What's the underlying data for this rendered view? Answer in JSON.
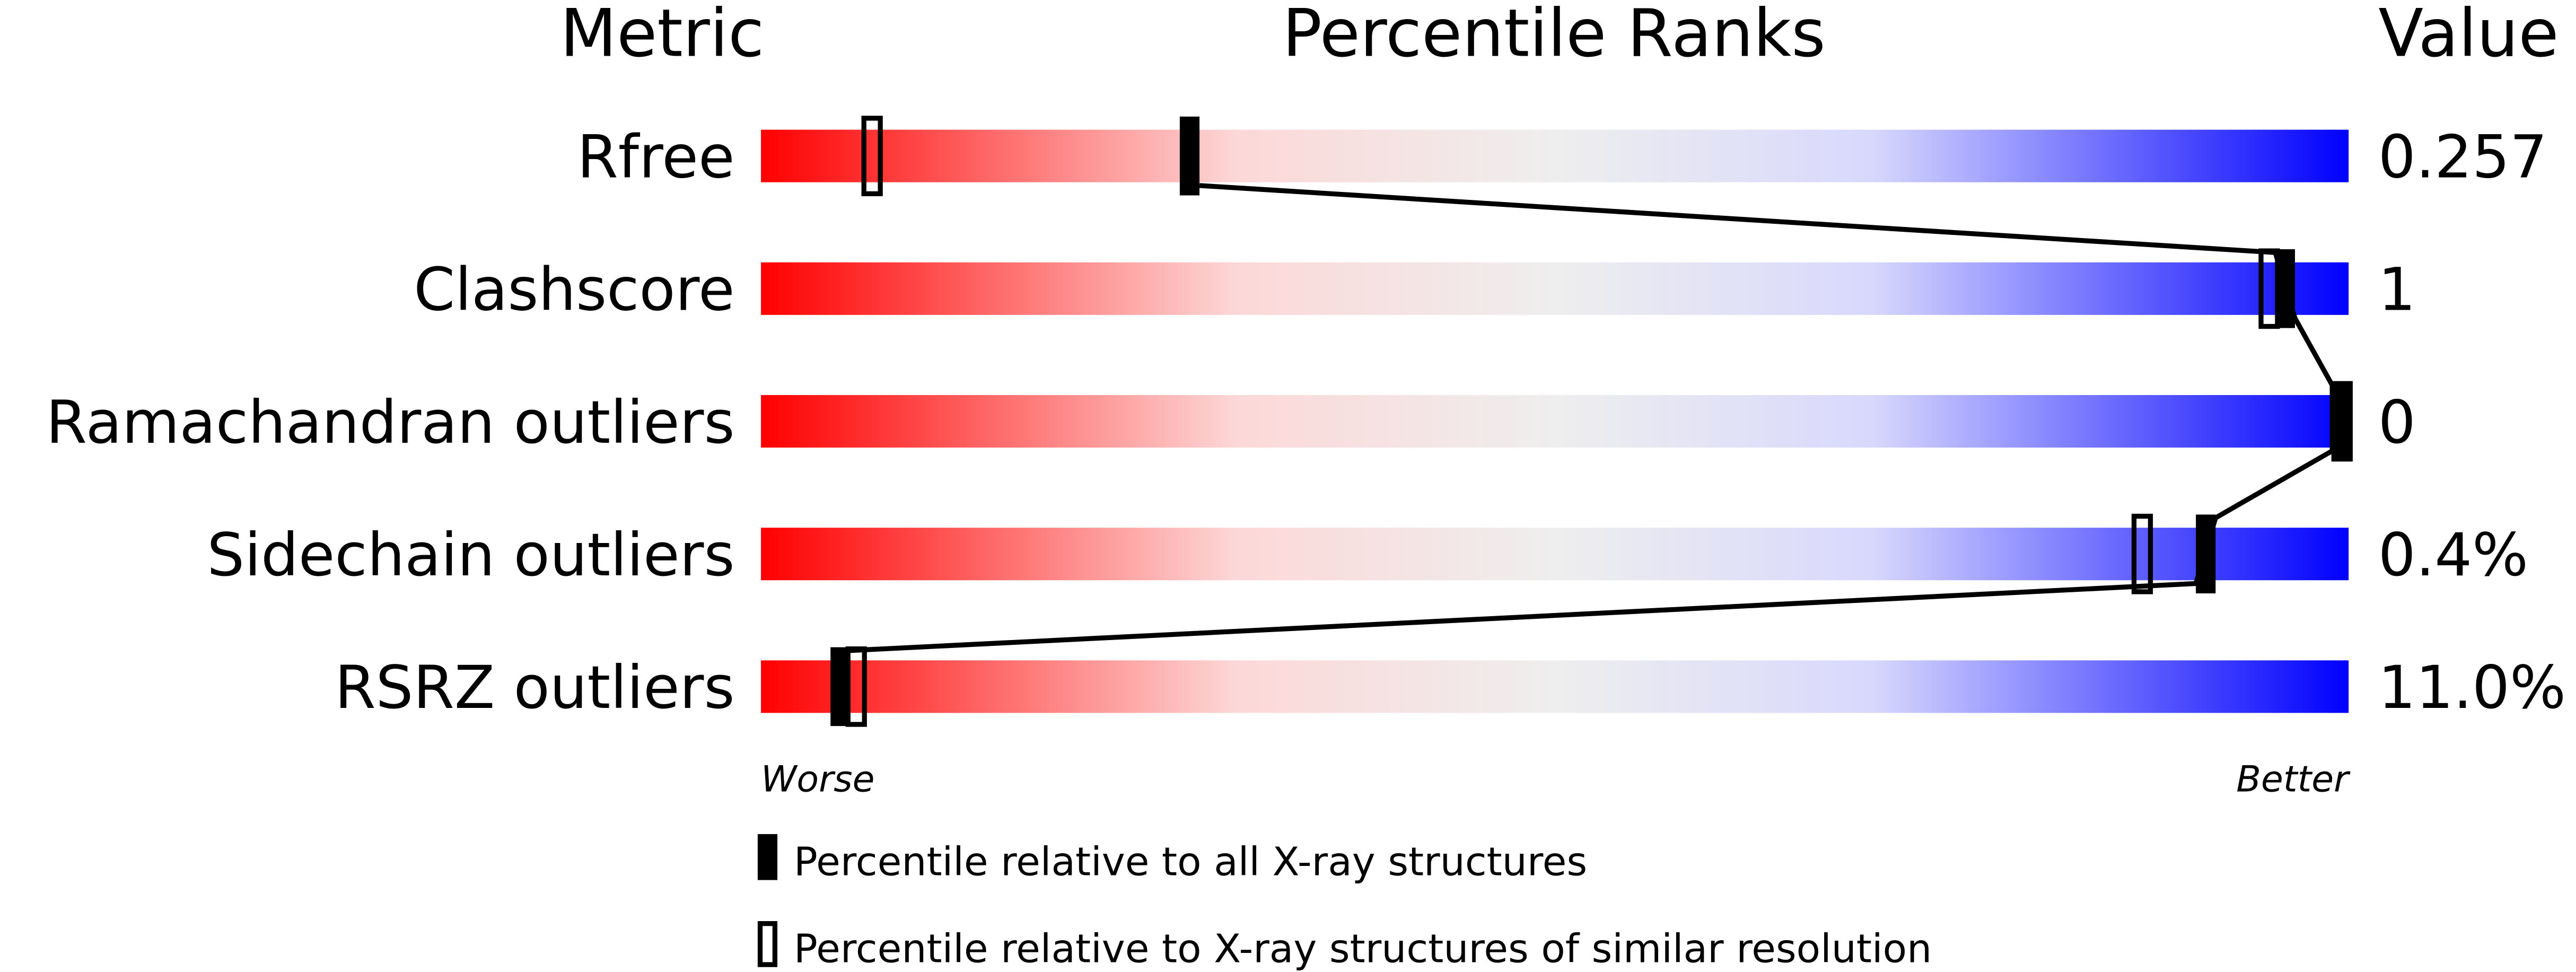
{
  "chart_data": {
    "type": "bar",
    "headers": {
      "metric": "Metric",
      "percentile": "Percentile Ranks",
      "value": "Value"
    },
    "xlim": [
      0,
      100
    ],
    "rows": [
      {
        "metric": "Rfree",
        "value": "0.257",
        "all_percentile": 27,
        "similar_percentile": 7
      },
      {
        "metric": "Clashscore",
        "value": "1",
        "all_percentile": 96,
        "similar_percentile": 95
      },
      {
        "metric": "Ramachandran outliers",
        "value": "0",
        "all_percentile": 100,
        "similar_percentile": 100
      },
      {
        "metric": "Sidechain outliers",
        "value": "0.4%",
        "all_percentile": 91,
        "similar_percentile": 87
      },
      {
        "metric": "RSRZ outliers",
        "value": "11.0%",
        "all_percentile": 5,
        "similar_percentile": 6
      }
    ],
    "axis": {
      "worse": "Worse",
      "better": "Better"
    },
    "legend": {
      "all": "Percentile relative to all X-ray structures",
      "similar": "Percentile relative to X-ray structures of similar resolution"
    },
    "colors": {
      "worse": "#ff0000",
      "middle": "#eeeeee",
      "better": "#0000ff"
    }
  }
}
